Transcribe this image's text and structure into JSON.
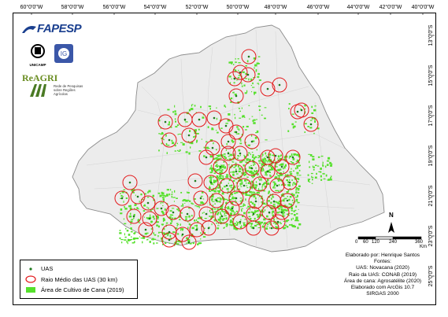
{
  "lon_labels": [
    "60°0'0\"W",
    "58°0'0\"W",
    "56°0'0\"W",
    "54°0'0\"W",
    "52°0'0\"W",
    "50°0'0\"W",
    "48°0'0\"W",
    "46°0'0\"W",
    "44°0'0\"W",
    "42°0'0\"W",
    "40°0'0\"W"
  ],
  "lat_labels": [
    "13°0'0\"S",
    "15°0'0\"S",
    "17°0'0\"S",
    "19°0'0\"S",
    "21°0'0\"S",
    "23°0'0\"S",
    "25°0'0\"S"
  ],
  "logos": {
    "fapesp": "FAPESP",
    "unicamp": "UNICAMP",
    "reagri": "ReAGRI",
    "reagri_sub": "Rede de Pesquisas sobre Regiões Agrícolas"
  },
  "legend": {
    "uas": "UAS",
    "radius": "Raio Médio das UAS (30 km)",
    "area": "Área de Cultivo de Cana (2019)"
  },
  "north_label": "N",
  "scale": {
    "ticks": [
      "0",
      "60",
      "120",
      "240",
      "360"
    ],
    "unit": "Km"
  },
  "credits": {
    "author": "Elaborado por: Henrique Santos",
    "sources_title": "Fontes:",
    "uas": "UAS: Novacana (2020)",
    "radius": "Raio da UAS: CONAB (2019)",
    "area": "Área de cana: Agrosatélite (2020)",
    "software": "Elaborado com ArcGis 10.7",
    "datum": "SIRGAS 2000"
  },
  "colors": {
    "region_fill": "#ececec",
    "region_stroke": "#999999",
    "uas_dot": "#1f7a1f",
    "radius_ring": "#e31a1c",
    "cane_area": "#55e02b"
  }
}
